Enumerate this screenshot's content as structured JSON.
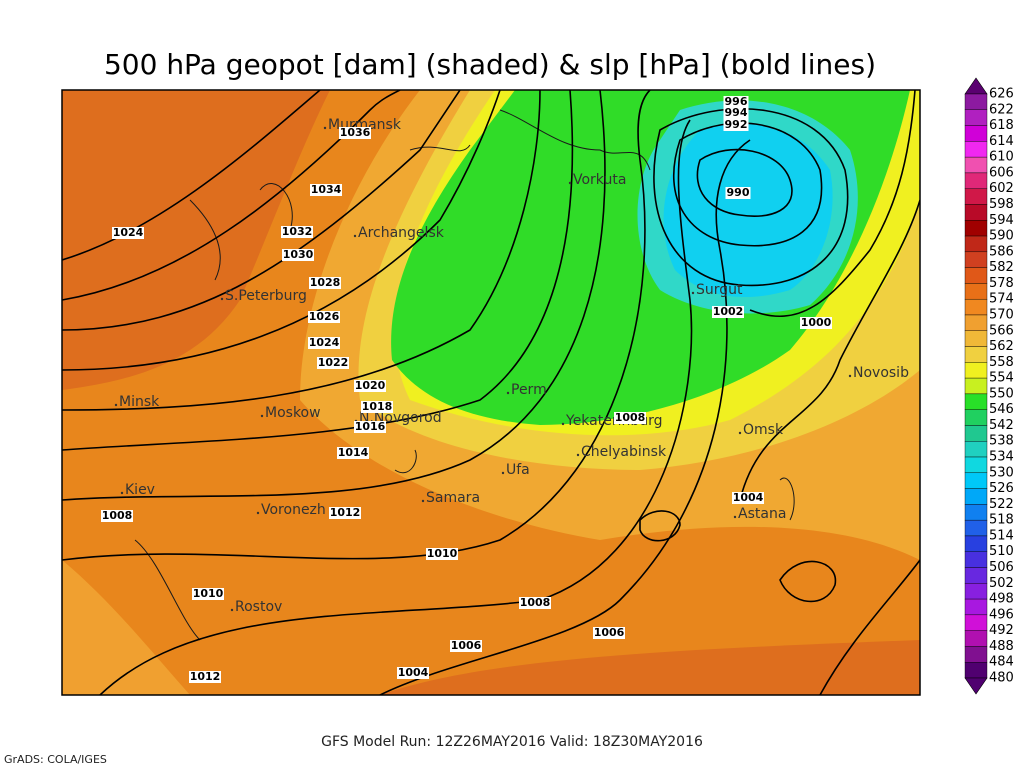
{
  "title": "500 hPa geopot [dam] (shaded) & slp [hPa] (bold lines)",
  "cities": [
    "Murmansk",
    "Archangelsk",
    "Vorkuta",
    "S.Peterburg",
    "Surgut",
    "Novosib",
    "Minsk",
    "Moskow",
    "N.Novgorod",
    "Perm",
    "Yekaterinburg",
    "Omsk",
    "Chelyabinsk",
    "Ufa",
    "Kiev",
    "Samara",
    "Voronezh",
    "Astana",
    "Rostov"
  ],
  "isobar_labels": [
    "1036",
    "1034",
    "1032",
    "1030",
    "1028",
    "1026",
    "1024",
    "1022",
    "1020",
    "1018",
    "1016",
    "1014",
    "1012",
    "1010",
    "1008",
    "1006",
    "1006",
    "1004",
    "1012",
    "1010",
    "1008",
    "1024",
    "996",
    "994",
    "992",
    "990",
    "1002",
    "1000",
    "1004",
    "1008"
  ],
  "colorbar": {
    "labels": [
      "626",
      "622",
      "618",
      "614",
      "610",
      "606",
      "602",
      "598",
      "594",
      "590",
      "586",
      "582",
      "578",
      "574",
      "570",
      "566",
      "562",
      "558",
      "554",
      "550",
      "546",
      "542",
      "538",
      "534",
      "530",
      "526",
      "522",
      "518",
      "514",
      "510",
      "506",
      "502",
      "498",
      "496",
      "492",
      "488",
      "484",
      "480"
    ],
    "colors": [
      "#5a0070",
      "#8c1aa0",
      "#b020c0",
      "#d000d8",
      "#f028f0",
      "#f050b0",
      "#e02878",
      "#d01848",
      "#b80a28",
      "#a00000",
      "#c02818",
      "#d04020",
      "#e05818",
      "#e87018",
      "#f08820",
      "#f0a030",
      "#f0b838",
      "#f0d040",
      "#f0f020",
      "#c8f020",
      "#28e028",
      "#20d060",
      "#20c890",
      "#20d0c0",
      "#10d8e0",
      "#00c8f8",
      "#00a8f8",
      "#1080f0",
      "#2060e8",
      "#2840e0",
      "#4830e0",
      "#6828e0",
      "#8820e0",
      "#a818e0",
      "#d010d8",
      "#b010b0",
      "#801090",
      "#500070"
    ]
  },
  "footer": {
    "model_run": "GFS Model Run: 12Z26MAY2016 Valid: 18Z30MAY2016",
    "credit": "GrADS: COLA/IGES"
  }
}
